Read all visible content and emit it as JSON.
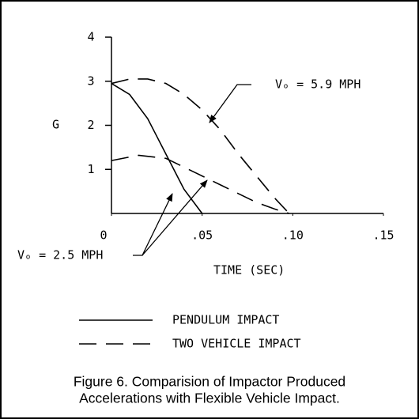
{
  "chart_data": {
    "type": "line",
    "ylabel": "G",
    "xlabel": "TIME (SEC)",
    "xlim": [
      0,
      0.15
    ],
    "ylim": [
      0,
      4
    ],
    "xticks": [
      0,
      {
        "value": 0.05,
        "label": ".05"
      },
      {
        "value": 0.1,
        "label": ".10"
      },
      {
        "value": 0.15,
        "label": ".15"
      }
    ],
    "yticks": [
      1,
      2,
      3,
      4
    ],
    "series": [
      {
        "dash": "solid",
        "color": "#000000",
        "x": [
          0,
          0.01,
          0.02,
          0.025,
          0.03,
          0.04,
          0.05
        ],
        "values": [
          2.95,
          2.7,
          2.15,
          1.75,
          1.35,
          0.55,
          0
        ]
      },
      {
        "dash": "dashed",
        "color": "#000000",
        "x": [
          0,
          0.01,
          0.02,
          0.03,
          0.04,
          0.05,
          0.06,
          0.07,
          0.08,
          0.09,
          0.098
        ],
        "values": [
          2.95,
          3.05,
          3.05,
          2.95,
          2.7,
          2.35,
          1.9,
          1.35,
          0.85,
          0.35,
          0
        ]
      },
      {
        "dash": "dashed",
        "color": "#000000",
        "x": [
          0,
          0.015,
          0.03,
          0.04,
          0.05,
          0.06,
          0.07,
          0.08,
          0.09,
          0.098
        ],
        "values": [
          1.2,
          1.32,
          1.25,
          1.05,
          0.85,
          0.65,
          0.45,
          0.25,
          0.1,
          0
        ]
      }
    ],
    "annotations": [
      "Vₒ = 5.9 MPH",
      "Vₒ = 2.5 MPH"
    ],
    "legend": [
      {
        "label": "PENDULUM IMPACT",
        "dash": "solid"
      },
      {
        "label": "TWO VEHICLE IMPACT",
        "dash": "dashed"
      }
    ],
    "caption": [
      "Figure 6. Comparision of Impactor Produced",
      "Accelerations with Flexible Vehicle Impact."
    ]
  }
}
